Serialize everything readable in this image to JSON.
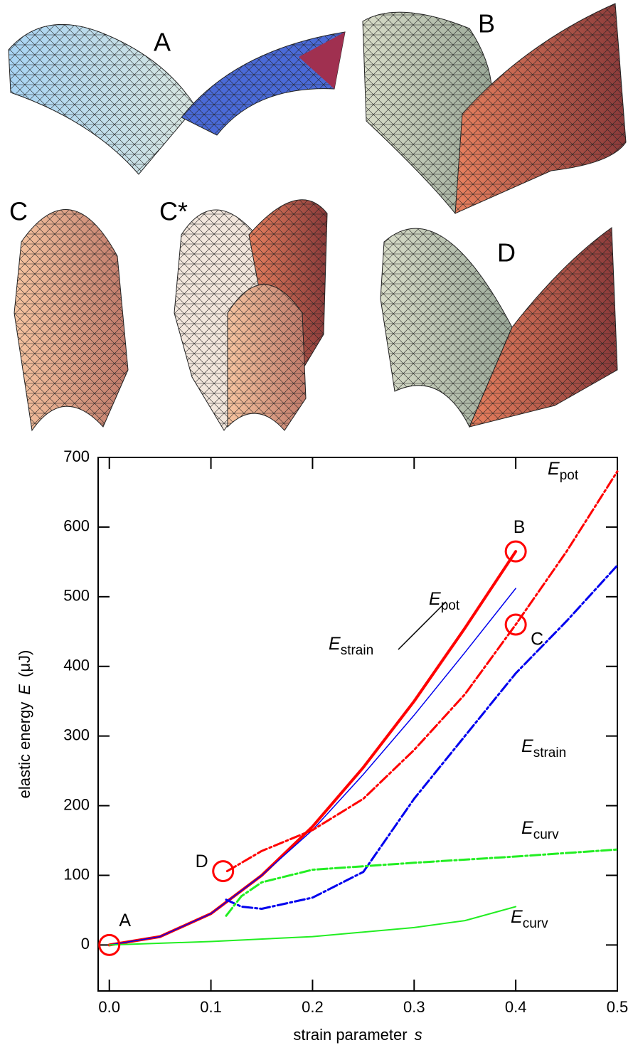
{
  "panels": [
    {
      "label": "A"
    },
    {
      "label": "B"
    },
    {
      "label": "C"
    },
    {
      "label": "C*"
    },
    {
      "label": "D"
    }
  ],
  "chart_data": {
    "type": "line",
    "xlabel": {
      "text": "strain parameter",
      "symbol": "s"
    },
    "ylabel": {
      "text": "elastic energy",
      "symbol": "E",
      "unit": "(μJ)"
    },
    "xlim": [
      -0.011,
      0.5
    ],
    "ylim": [
      -66,
      700
    ],
    "xticks": [
      {
        "value": 0,
        "label": "0.0"
      },
      0.1,
      0.2,
      0.3,
      0.4,
      0.5
    ],
    "yticks": [
      0,
      100,
      200,
      300,
      400,
      500,
      600,
      700
    ],
    "series": [
      {
        "label": {
          "main": "E",
          "sub": "pot"
        },
        "color": "#ff0000",
        "style": "solid",
        "width": 4,
        "x": [
          0,
          0.05,
          0.1,
          0.15,
          0.2,
          0.25,
          0.3,
          0.35,
          0.4
        ],
        "values": [
          0,
          12,
          45,
          100,
          170,
          255,
          350,
          455,
          565
        ]
      },
      {
        "label": {
          "main": "E",
          "sub": "strain"
        },
        "color": "#0000ee",
        "style": "solid",
        "width": 1.5,
        "x": [
          0,
          0.05,
          0.1,
          0.15,
          0.2,
          0.25,
          0.3,
          0.35,
          0.4
        ],
        "values": [
          0,
          12,
          45,
          100,
          165,
          245,
          330,
          420,
          512
        ]
      },
      {
        "label": {
          "main": "E",
          "sub": "curv"
        },
        "color": "#22ee22",
        "style": "solid",
        "width": 2,
        "x": [
          0,
          0.1,
          0.2,
          0.3,
          0.35,
          0.4
        ],
        "values": [
          0,
          5,
          12,
          25,
          35,
          55
        ]
      },
      {
        "label": {
          "main": "E",
          "sub": "pot"
        },
        "color": "#ff0000",
        "style": "dashed",
        "width": 3,
        "x": [
          0.116,
          0.15,
          0.2,
          0.25,
          0.3,
          0.35,
          0.4,
          0.45,
          0.5
        ],
        "values": [
          106,
          135,
          165,
          210,
          280,
          360,
          460,
          565,
          680
        ]
      },
      {
        "label": {
          "main": "E",
          "sub": "strain"
        },
        "color": "#0000ee",
        "style": "dashed",
        "width": 3,
        "x": [
          0.115,
          0.13,
          0.15,
          0.2,
          0.25,
          0.3,
          0.35,
          0.4,
          0.45,
          0.5
        ],
        "values": [
          65,
          55,
          52,
          68,
          105,
          210,
          300,
          390,
          465,
          545
        ]
      },
      {
        "label": {
          "main": "E",
          "sub": "curv"
        },
        "color": "#22ee22",
        "style": "dashed",
        "width": 3,
        "x": [
          0.115,
          0.13,
          0.15,
          0.2,
          0.25,
          0.3,
          0.4,
          0.5
        ],
        "values": [
          42,
          70,
          90,
          108,
          113,
          118,
          127,
          137
        ]
      }
    ],
    "markers": [
      {
        "label": "A",
        "x": 0,
        "y": 0
      },
      {
        "label": "B",
        "x": 0.4,
        "y": 565
      },
      {
        "label": "C",
        "x": 0.4,
        "y": 460
      },
      {
        "label": "D",
        "x": 0.112,
        "y": 106
      }
    ]
  }
}
